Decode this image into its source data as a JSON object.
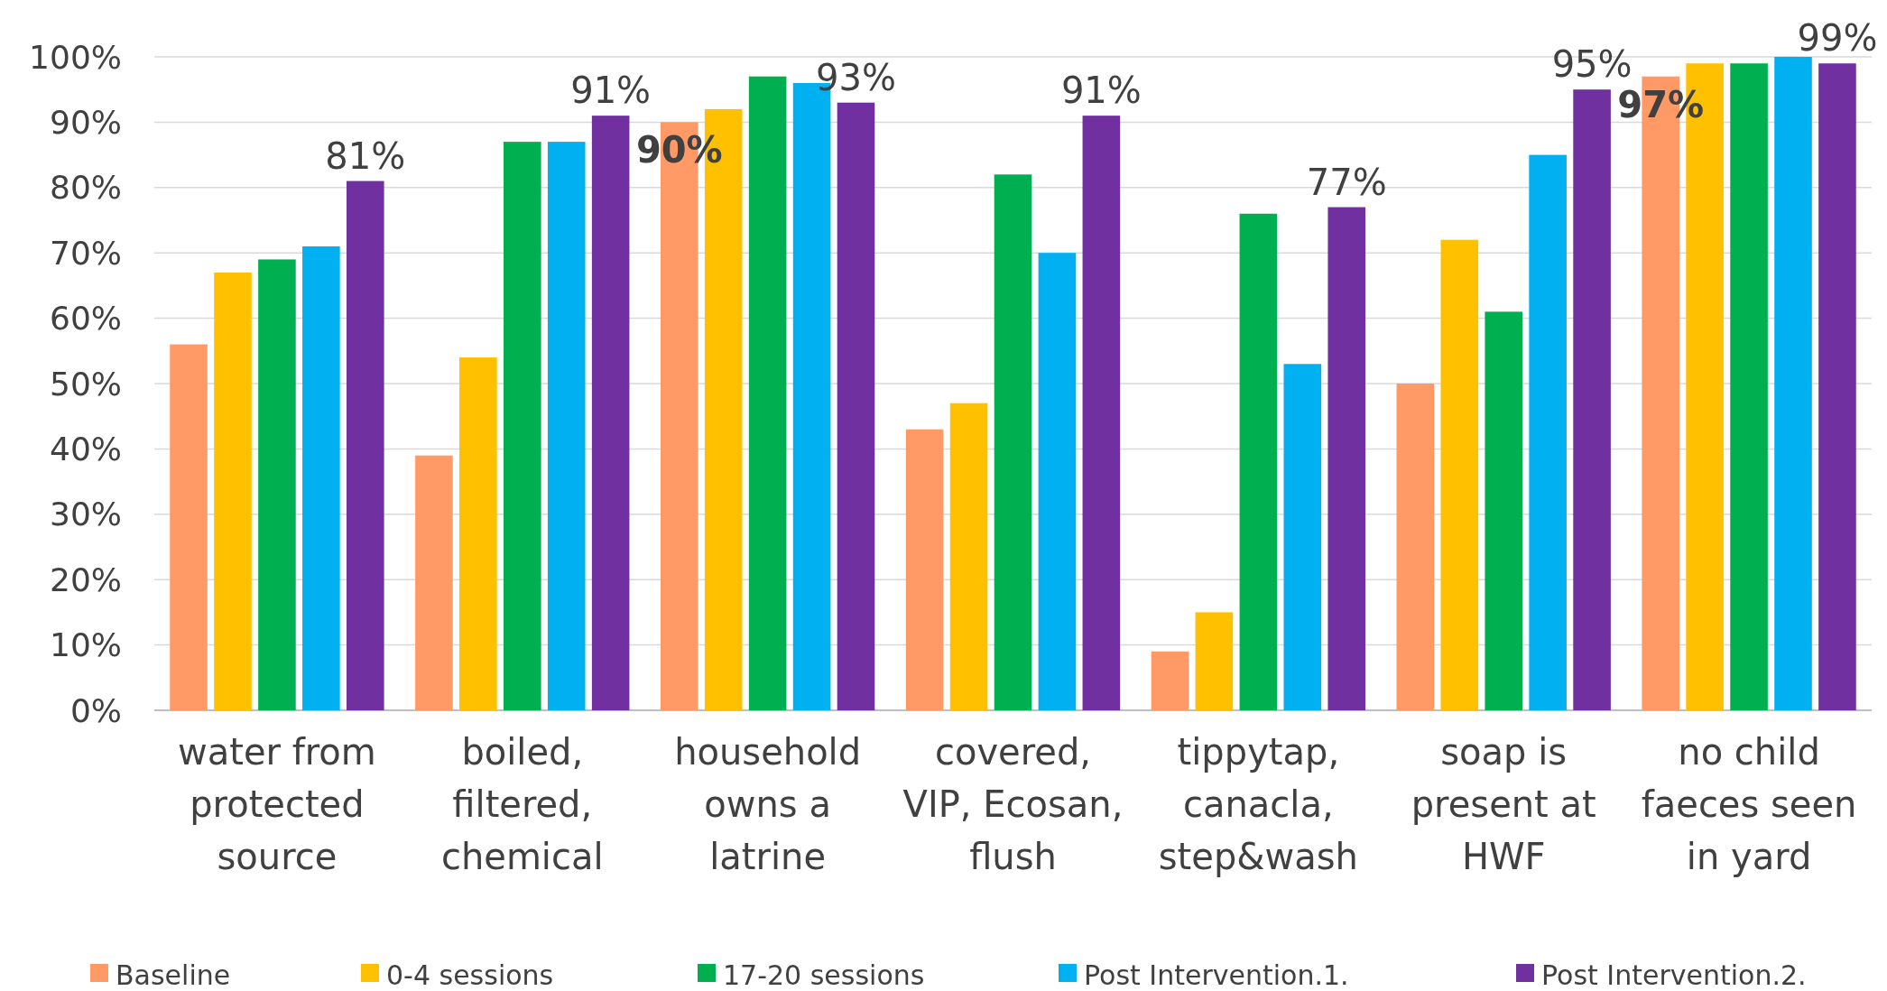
{
  "chart_data": {
    "type": "bar",
    "categories": [
      "water from protected source",
      "boiled, filtered, chemical",
      "household owns a latrine",
      "covered, VIP, Ecosan, flush",
      "tippytap, canacla, step&wash",
      "soap is present at HWF",
      "no child faeces seen in yard"
    ],
    "series": [
      {
        "name": "Baseline",
        "color": "#ff9966",
        "values": [
          56,
          39,
          90,
          43,
          9,
          50,
          97
        ],
        "value_labels": [
          null,
          null,
          "90%",
          null,
          null,
          null,
          "97%"
        ]
      },
      {
        "name": "0-4 sessions",
        "color": "#ffc000",
        "values": [
          67,
          54,
          92,
          47,
          15,
          72,
          99
        ]
      },
      {
        "name": "17-20 sessions",
        "color": "#00b050",
        "values": [
          69,
          87,
          97,
          82,
          76,
          61,
          99
        ]
      },
      {
        "name": "Post Intervention.1.",
        "color": "#00b0f0",
        "values": [
          71,
          87,
          96,
          70,
          53,
          85,
          100
        ]
      },
      {
        "name": "Post Intervention.2.",
        "color": "#7030a0",
        "values": [
          81,
          91,
          93,
          91,
          77,
          95,
          99
        ],
        "value_labels": [
          "81%",
          "91%",
          "93%",
          "91%",
          "77%",
          "95%",
          "99%"
        ]
      }
    ],
    "ylim": [
      0,
      100
    ],
    "yticks": [
      {
        "value": 0,
        "label": "0%"
      },
      {
        "value": 10,
        "label": "10%"
      },
      {
        "value": 20,
        "label": "20%"
      },
      {
        "value": 30,
        "label": "30%"
      },
      {
        "value": 40,
        "label": "40%"
      },
      {
        "value": 50,
        "label": "50%"
      },
      {
        "value": 60,
        "label": "60%"
      },
      {
        "value": 70,
        "label": "70%"
      },
      {
        "value": 80,
        "label": "80%"
      },
      {
        "value": 90,
        "label": "90%"
      },
      {
        "value": 100,
        "label": "100%"
      }
    ],
    "grid": "y",
    "legend": "bottom"
  }
}
